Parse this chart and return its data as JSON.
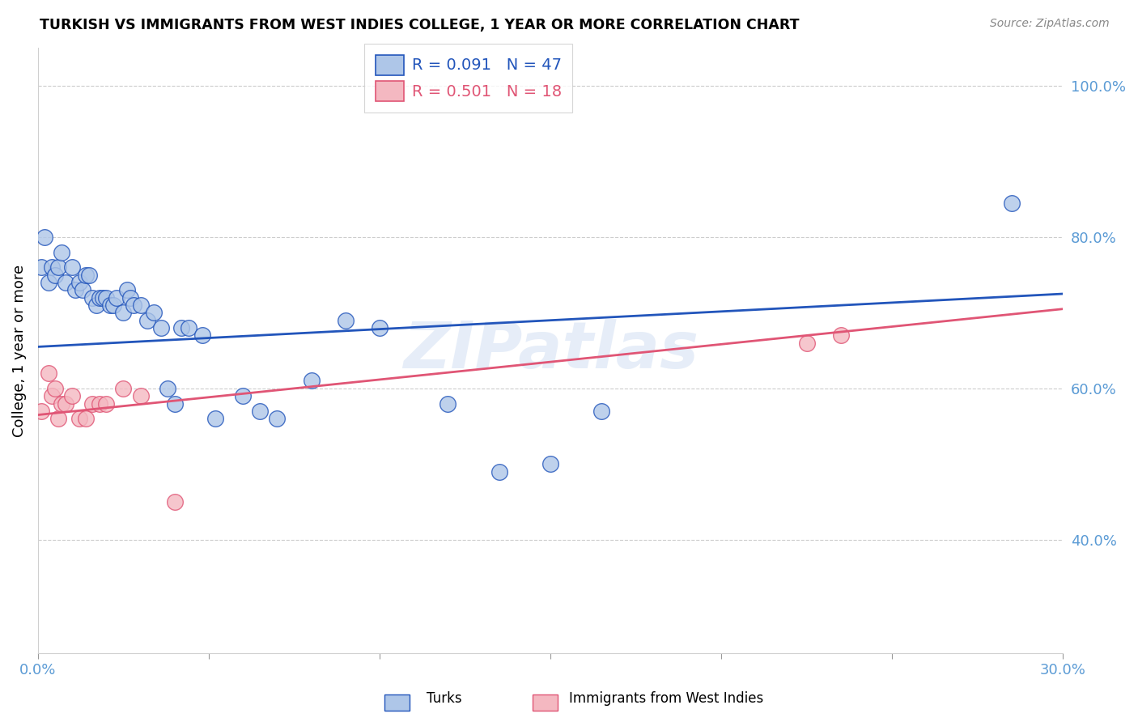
{
  "title": "TURKISH VS IMMIGRANTS FROM WEST INDIES COLLEGE, 1 YEAR OR MORE CORRELATION CHART",
  "source": "Source: ZipAtlas.com",
  "ylabel": "College, 1 year or more",
  "legend_label_1": "Turks",
  "legend_label_2": "Immigrants from West Indies",
  "r1": 0.091,
  "n1": 47,
  "r2": 0.501,
  "n2": 18,
  "xlim": [
    0.0,
    0.3
  ],
  "ylim": [
    0.25,
    1.05
  ],
  "yticks": [
    0.4,
    0.6,
    0.8,
    1.0
  ],
  "ytick_labels": [
    "40.0%",
    "60.0%",
    "80.0%",
    "100.0%"
  ],
  "xticks": [
    0.0,
    0.05,
    0.1,
    0.15,
    0.2,
    0.25,
    0.3
  ],
  "xtick_labels": [
    "0.0%",
    "",
    "",
    "",
    "",
    "",
    "30.0%"
  ],
  "color_turks": "#aec6e8",
  "color_wi": "#f4b8c1",
  "color_turks_line": "#2255bb",
  "color_wi_line": "#e05575",
  "color_axis_labels": "#5b9bd5",
  "background_color": "#ffffff",
  "watermark": "ZIPatlas",
  "turks_x": [
    0.001,
    0.002,
    0.003,
    0.004,
    0.005,
    0.006,
    0.007,
    0.008,
    0.01,
    0.011,
    0.012,
    0.013,
    0.014,
    0.015,
    0.016,
    0.017,
    0.018,
    0.019,
    0.02,
    0.021,
    0.022,
    0.023,
    0.025,
    0.026,
    0.027,
    0.028,
    0.03,
    0.032,
    0.034,
    0.036,
    0.038,
    0.04,
    0.042,
    0.044,
    0.048,
    0.052,
    0.06,
    0.065,
    0.07,
    0.08,
    0.09,
    0.1,
    0.12,
    0.135,
    0.15,
    0.165,
    0.285
  ],
  "turks_y": [
    0.76,
    0.8,
    0.74,
    0.76,
    0.75,
    0.76,
    0.78,
    0.74,
    0.76,
    0.73,
    0.74,
    0.73,
    0.75,
    0.75,
    0.72,
    0.71,
    0.72,
    0.72,
    0.72,
    0.71,
    0.71,
    0.72,
    0.7,
    0.73,
    0.72,
    0.71,
    0.71,
    0.69,
    0.7,
    0.68,
    0.6,
    0.58,
    0.68,
    0.68,
    0.67,
    0.56,
    0.59,
    0.57,
    0.56,
    0.61,
    0.69,
    0.68,
    0.58,
    0.49,
    0.5,
    0.57,
    0.845
  ],
  "wi_x": [
    0.001,
    0.003,
    0.004,
    0.005,
    0.006,
    0.007,
    0.008,
    0.01,
    0.012,
    0.014,
    0.016,
    0.018,
    0.02,
    0.025,
    0.03,
    0.04,
    0.225,
    0.235
  ],
  "wi_y": [
    0.57,
    0.62,
    0.59,
    0.6,
    0.56,
    0.58,
    0.58,
    0.59,
    0.56,
    0.56,
    0.58,
    0.58,
    0.58,
    0.6,
    0.59,
    0.45,
    0.66,
    0.67
  ],
  "line_turks_x0": 0.0,
  "line_turks_x1": 0.3,
  "line_turks_y0": 0.655,
  "line_turks_y1": 0.725,
  "line_wi_x0": 0.0,
  "line_wi_x1": 0.3,
  "line_wi_y0": 0.565,
  "line_wi_y1": 0.705
}
